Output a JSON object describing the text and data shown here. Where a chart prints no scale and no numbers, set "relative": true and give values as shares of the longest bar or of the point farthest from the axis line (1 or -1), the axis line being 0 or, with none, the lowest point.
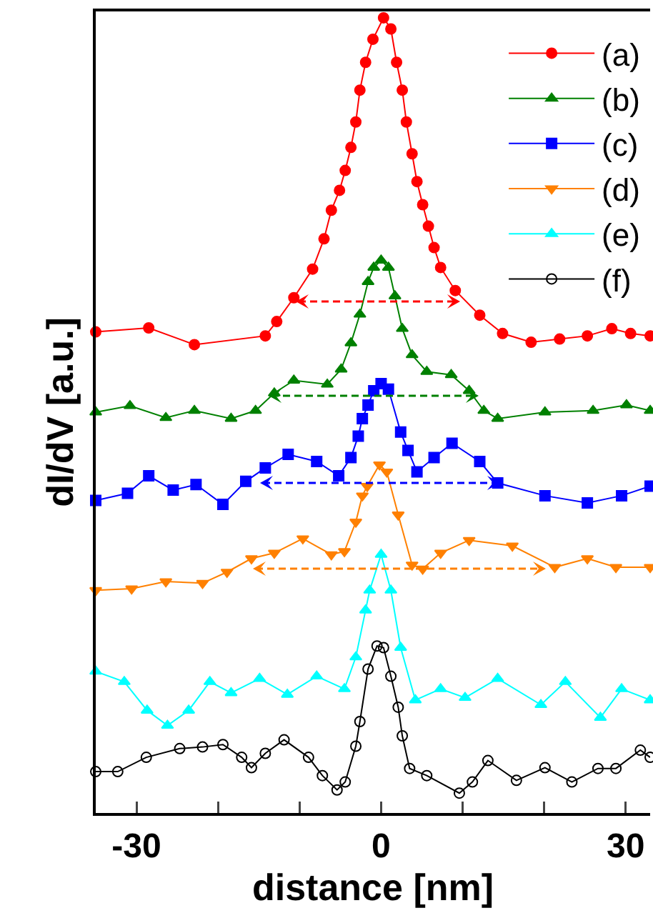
{
  "chart_data": {
    "type": "line",
    "relative": true,
    "xlabel": "distance [nm]",
    "ylabel": "dI/dV [a.u.]",
    "xlim": [
      -35,
      33
    ],
    "xticks": [
      -30,
      {
        "value": -20,
        "label": null
      },
      {
        "value": -10,
        "label": null
      },
      0,
      {
        "value": 10,
        "label": null
      },
      {
        "value": 20,
        "label": null
      },
      30
    ],
    "tick_labels": "x",
    "grid": false,
    "legend": "top right",
    "line_style": "solid",
    "series": [
      {
        "name": "(a)",
        "color": "#ff0000",
        "marker": "circle",
        "x": [
          -35,
          -28.5,
          -22.9,
          -14.2,
          -12.8,
          -10.7,
          -8.4,
          -7.0,
          -6.1,
          -5.1,
          -4.4,
          -3.7,
          -3.1,
          -2.6,
          -1.9,
          -1.0,
          0.3,
          1.2,
          1.9,
          2.6,
          3.1,
          3.8,
          4.4,
          5.1,
          5.8,
          6.5,
          7.3,
          9.1,
          12.1,
          14.9,
          18.4,
          21.9,
          25.3,
          28.3,
          30.6,
          33
        ],
        "values": [
          0.605,
          0.61,
          0.589,
          0.6,
          0.618,
          0.648,
          0.684,
          0.722,
          0.758,
          0.783,
          0.808,
          0.837,
          0.869,
          0.909,
          0.944,
          0.973,
          1,
          0.986,
          0.944,
          0.909,
          0.869,
          0.829,
          0.794,
          0.765,
          0.738,
          0.711,
          0.686,
          0.657,
          0.626,
          0.603,
          0.592,
          0.596,
          0.6,
          0.609,
          0.603,
          0.6
        ]
      },
      {
        "name": "(b)",
        "color": "#008000",
        "marker": "triangle",
        "x": [
          -35,
          -30.8,
          -26.4,
          -22.9,
          -18.4,
          -15.4,
          -13.1,
          -10.7,
          -6.6,
          -4.9,
          -3.7,
          -2.6,
          -1.6,
          -0.9,
          0,
          0.9,
          1.7,
          2.6,
          3.8,
          5.6,
          8.6,
          10.8,
          12.6,
          14.3,
          20.1,
          26.0,
          30.1,
          33
        ],
        "values": [
          0.504,
          0.512,
          0.497,
          0.506,
          0.496,
          0.506,
          0.528,
          0.544,
          0.539,
          0.558,
          0.591,
          0.627,
          0.668,
          0.686,
          0.695,
          0.686,
          0.65,
          0.609,
          0.576,
          0.555,
          0.551,
          0.531,
          0.506,
          0.496,
          0.504,
          0.506,
          0.513,
          0.506
        ]
      },
      {
        "name": "(c)",
        "color": "#0000ff",
        "marker": "square",
        "x": [
          -35,
          -31.1,
          -28.5,
          -25.5,
          -22.7,
          -19.4,
          -16.6,
          -14.2,
          -11.4,
          -7.9,
          -5.2,
          -3.7,
          -2.8,
          -2.3,
          -1.6,
          -0.9,
          0,
          0.9,
          2.4,
          3.3,
          4.4,
          6.5,
          8.7,
          12.1,
          14.3,
          20.1,
          25.3,
          29.5,
          33
        ],
        "values": [
          0.393,
          0.402,
          0.424,
          0.406,
          0.413,
          0.388,
          0.417,
          0.434,
          0.451,
          0.442,
          0.424,
          0.447,
          0.474,
          0.496,
          0.513,
          0.531,
          0.54,
          0.533,
          0.479,
          0.456,
          0.429,
          0.447,
          0.465,
          0.442,
          0.415,
          0.399,
          0.39,
          0.399,
          0.411
        ]
      },
      {
        "name": "(d)",
        "color": "#ff8000",
        "marker": "triangle-down",
        "x": [
          -35,
          -30.6,
          -26.4,
          -21.9,
          -18.9,
          -15.9,
          -13.1,
          -9.6,
          -6.1,
          -4.5,
          -3.1,
          -2.3,
          -1.7,
          -0.2,
          0.7,
          2.1,
          3.8,
          5.1,
          7.3,
          10.8,
          16.1,
          21.3,
          25.3,
          28.8,
          33
        ],
        "values": [
          0.28,
          0.282,
          0.291,
          0.289,
          0.303,
          0.32,
          0.327,
          0.345,
          0.325,
          0.329,
          0.366,
          0.399,
          0.411,
          0.438,
          0.429,
          0.375,
          0.312,
          0.307,
          0.327,
          0.343,
          0.336,
          0.309,
          0.32,
          0.309,
          0.309
        ]
      },
      {
        "name": "(e)",
        "color": "#00ffff",
        "marker": "triangle",
        "x": [
          -35,
          -31.5,
          -28.7,
          -26.2,
          -23.6,
          -21.0,
          -18.4,
          -14.9,
          -11.5,
          -7.9,
          -4.5,
          -3.1,
          -1.9,
          -1.4,
          0,
          1.2,
          2.4,
          4.2,
          7.3,
          10.3,
          14.3,
          19.6,
          22.6,
          26.9,
          29.5,
          33
        ],
        "values": [
          0.178,
          0.165,
          0.129,
          0.11,
          0.129,
          0.165,
          0.151,
          0.169,
          0.149,
          0.172,
          0.156,
          0.196,
          0.255,
          0.28,
          0.325,
          0.28,
          0.208,
          0.142,
          0.156,
          0.145,
          0.169,
          0.136,
          0.165,
          0.12,
          0.156,
          0.142
        ]
      },
      {
        "name": "(f)",
        "color": "#000000",
        "marker": "circle-open",
        "x": [
          -35,
          -32.3,
          -28.8,
          -24.7,
          -21.9,
          -19.4,
          -17.1,
          -15.9,
          -14.2,
          -11.9,
          -8.9,
          -7.2,
          -5.4,
          -4.4,
          -3.1,
          -2.6,
          -1.6,
          -0.5,
          0.3,
          1.2,
          2.1,
          2.6,
          3.5,
          5.6,
          9.6,
          11.2,
          13.1,
          16.6,
          20.1,
          23.4,
          26.6,
          28.8,
          31.8,
          33
        ],
        "values": [
          0.052,
          0.052,
          0.07,
          0.081,
          0.083,
          0.086,
          0.07,
          0.057,
          0.075,
          0.092,
          0.07,
          0.047,
          0.029,
          0.039,
          0.084,
          0.115,
          0.181,
          0.21,
          0.208,
          0.172,
          0.133,
          0.097,
          0.056,
          0.047,
          0.025,
          0.039,
          0.066,
          0.041,
          0.057,
          0.039,
          0.056,
          0.056,
          0.079,
          0.07
        ]
      }
    ]
  }
}
